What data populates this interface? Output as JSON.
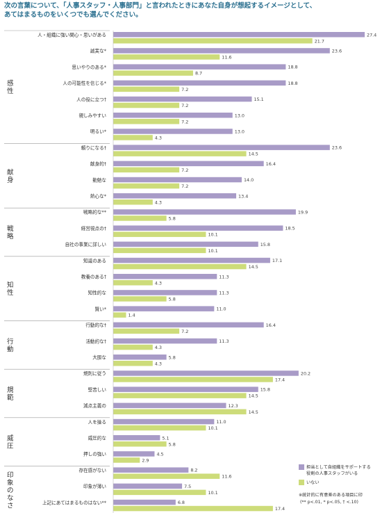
{
  "header": {
    "line1": "次の言葉について、「人事スタッフ・人事部門」と言われたときにあなた自身が想起するイメージとして、",
    "line2": "あてはまるものをいくつでも選んでください。"
  },
  "colors": {
    "supported": "#a89bc7",
    "not_supported": "#cddc7a",
    "divider": "#999999"
  },
  "legend": {
    "supported_line1": "担当として自組織をサポートする",
    "supported_line2": "役割の人事スタッフがいる",
    "not_supported": "いない"
  },
  "note": {
    "line1": "※統計的に有意差のある項目に印",
    "line2": "(** p<.01, * p<.05, † <.10)"
  },
  "chart_data": {
    "type": "bar",
    "orientation": "horizontal",
    "series": [
      {
        "name": "担当として自組織をサポートする役割の人事スタッフがいる",
        "color": "#a89bc7"
      },
      {
        "name": "いない",
        "color": "#cddc7a"
      }
    ],
    "groups": [
      {
        "name": "感性",
        "items": [
          {
            "label": "人・組織に強い関心・思いがある",
            "values": [
              27.4,
              21.7
            ]
          },
          {
            "label": "誠実な*",
            "values": [
              23.6,
              11.6
            ]
          },
          {
            "label": "思いやりのある*",
            "values": [
              18.8,
              8.7
            ]
          },
          {
            "label": "人の可能性を信じる*",
            "values": [
              18.8,
              7.2
            ]
          },
          {
            "label": "人の役に立つ†",
            "values": [
              15.1,
              7.2
            ]
          },
          {
            "label": "親しみやすい",
            "values": [
              13.0,
              7.2
            ]
          },
          {
            "label": "明るい*",
            "values": [
              13.0,
              4.3
            ]
          }
        ]
      },
      {
        "name": "献身",
        "items": [
          {
            "label": "頼りになる†",
            "values": [
              23.6,
              14.5
            ]
          },
          {
            "label": "献身的†",
            "values": [
              16.4,
              7.2
            ]
          },
          {
            "label": "勤勉な",
            "values": [
              14.0,
              7.2
            ]
          },
          {
            "label": "熱心な*",
            "values": [
              13.4,
              4.3
            ]
          }
        ]
      },
      {
        "name": "戦略",
        "items": [
          {
            "label": "戦略的な**",
            "values": [
              19.9,
              5.8
            ]
          },
          {
            "label": "経営視点の†",
            "values": [
              18.5,
              10.1
            ]
          },
          {
            "label": "自社の事業に詳しい",
            "values": [
              15.8,
              10.1
            ]
          }
        ]
      },
      {
        "name": "知性",
        "items": [
          {
            "label": "知識のある",
            "values": [
              17.1,
              14.5
            ]
          },
          {
            "label": "教養のある†",
            "values": [
              11.3,
              4.3
            ]
          },
          {
            "label": "知性的な",
            "values": [
              11.3,
              5.8
            ]
          },
          {
            "label": "賢い*",
            "values": [
              11.0,
              1.4
            ]
          }
        ]
      },
      {
        "name": "行動",
        "items": [
          {
            "label": "行動的な†",
            "values": [
              16.4,
              7.2
            ]
          },
          {
            "label": "活動的な†",
            "values": [
              11.3,
              4.3
            ]
          },
          {
            "label": "大胆な",
            "values": [
              5.8,
              4.3
            ]
          }
        ]
      },
      {
        "name": "規範",
        "items": [
          {
            "label": "規則に従う",
            "values": [
              20.2,
              17.4
            ]
          },
          {
            "label": "堅苦しい",
            "values": [
              15.8,
              14.5
            ]
          },
          {
            "label": "減点主義の",
            "values": [
              12.3,
              14.5
            ]
          }
        ]
      },
      {
        "name": "威圧",
        "items": [
          {
            "label": "人を操る",
            "values": [
              11.0,
              10.1
            ]
          },
          {
            "label": "威圧的な",
            "values": [
              5.1,
              5.8
            ]
          },
          {
            "label": "押しの強い",
            "values": [
              4.5,
              2.9
            ]
          }
        ]
      },
      {
        "name": "印象のなさ",
        "items": [
          {
            "label": "存在感がない",
            "values": [
              8.2,
              11.6
            ]
          },
          {
            "label": "印象が薄い",
            "values": [
              7.5,
              10.1
            ]
          },
          {
            "label": "上記にあてはまるものはない**",
            "values": [
              6.8,
              17.4
            ]
          }
        ]
      }
    ],
    "xlim": [
      0,
      27.4
    ]
  }
}
